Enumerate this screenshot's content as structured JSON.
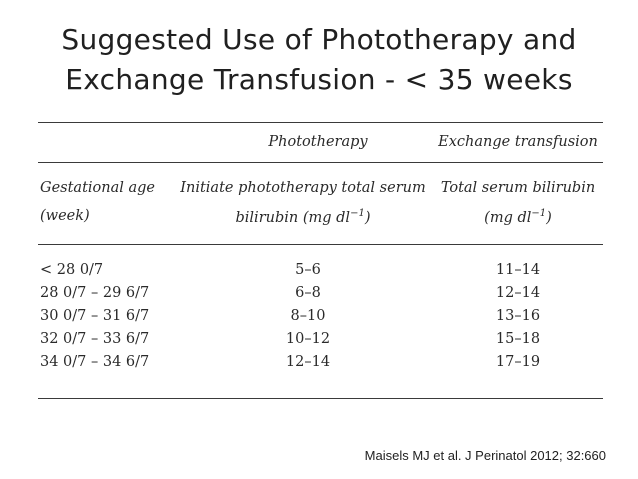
{
  "slide": {
    "title_line1": "Suggested Use of Phototherapy and",
    "title_line2": "Exchange Transfusion - < 35 weeks",
    "citation": "Maisels MJ et al. J Perinatol 2012; 32:660"
  },
  "table": {
    "group_headers": {
      "phototherapy": "Phototherapy",
      "exchange": "Exchange transfusion"
    },
    "column_headers": {
      "gestational_line1": "Gestational age",
      "gestational_line2": "(week)",
      "photo_line1": "Initiate phototherapy total serum",
      "photo_line2": "bilirubin (mg dl",
      "photo_line2_sup": "−1",
      "photo_line2_end": ")",
      "exchange_line1": "Total serum bilirubin",
      "exchange_line2": "(mg dl",
      "exchange_line2_sup": "−1",
      "exchange_line2_end": ")"
    },
    "rows": [
      {
        "ga": "< 28 0/7",
        "photo": "5–6",
        "exchange": "11–14"
      },
      {
        "ga": "28 0/7 – 29 6/7",
        "photo": "6–8",
        "exchange": "12–14"
      },
      {
        "ga": "30 0/7 – 31 6/7",
        "photo": "8–10",
        "exchange": "13–16"
      },
      {
        "ga": "32 0/7 – 33 6/7",
        "photo": "10–12",
        "exchange": "15–18"
      },
      {
        "ga": "34 0/7 – 34 6/7",
        "photo": "12–14",
        "exchange": "17–19"
      }
    ]
  }
}
